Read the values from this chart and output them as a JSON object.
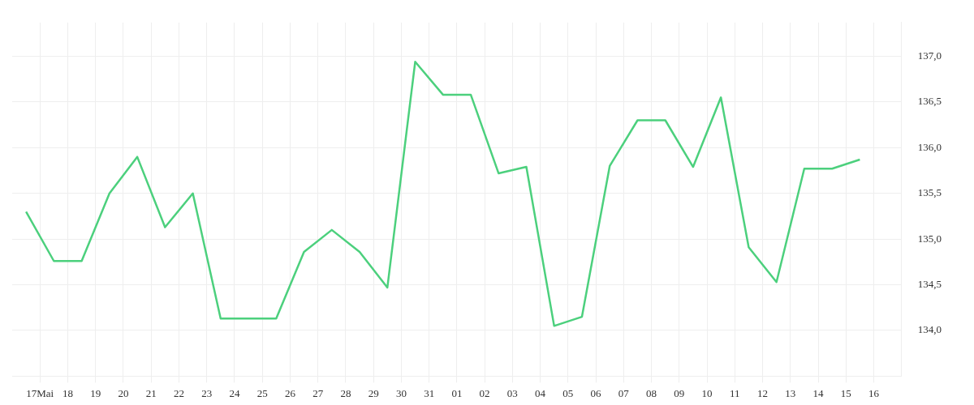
{
  "chart_data": {
    "type": "line",
    "x": [
      "--05-16T12:00",
      "--05-17T12:00",
      "--05-18T12:00",
      "--05-19T12:00",
      "--05-20T12:00",
      "--05-21T12:00",
      "--05-22T12:00",
      "--05-23T12:00",
      "--05-24T12:00",
      "--05-25T12:00",
      "--05-26T12:00",
      "--05-27T12:00",
      "--05-28T12:00",
      "--05-29T12:00",
      "--05-30T12:00",
      "--05-31T12:00",
      "--06-01T12:00",
      "--06-02T12:00",
      "--06-03T12:00",
      "--06-04T12:00",
      "--06-05T12:00",
      "--06-06T12:00",
      "--06-07T12:00",
      "--06-08T12:00",
      "--06-09T12:00",
      "--06-10T12:00",
      "--06-11T12:00",
      "--06-12T12:00",
      "--06-13T12:00",
      "--06-14T12:00",
      "--06-15T12:00"
    ],
    "series": [
      {
        "color": "#4cd07d",
        "values": [
          135.3,
          134.76,
          134.76,
          135.5,
          135.9,
          135.13,
          135.5,
          134.13,
          134.13,
          134.13,
          134.86,
          135.1,
          134.86,
          134.47,
          136.94,
          136.58,
          136.58,
          135.72,
          135.79,
          134.05,
          134.15,
          135.8,
          136.3,
          136.3,
          135.79,
          136.55,
          134.91,
          134.53,
          135.77,
          135.77,
          135.87
        ]
      }
    ],
    "xlim": [
      "--05-16",
      "--06-17"
    ],
    "xticks": [
      {
        "value": "--05-17",
        "label": "17Mai"
      },
      {
        "value": "--05-18",
        "label": "18"
      },
      {
        "value": "--05-19",
        "label": "19"
      },
      {
        "value": "--05-20",
        "label": "20"
      },
      {
        "value": "--05-21",
        "label": "21"
      },
      {
        "value": "--05-22",
        "label": "22"
      },
      {
        "value": "--05-23",
        "label": "23"
      },
      {
        "value": "--05-24",
        "label": "24"
      },
      {
        "value": "--05-25",
        "label": "25"
      },
      {
        "value": "--05-26",
        "label": "26"
      },
      {
        "value": "--05-27",
        "label": "27"
      },
      {
        "value": "--05-28",
        "label": "28"
      },
      {
        "value": "--05-29",
        "label": "29"
      },
      {
        "value": "--05-30",
        "label": "30"
      },
      {
        "value": "--05-31",
        "label": "31"
      },
      {
        "value": "--06-01",
        "label": "01"
      },
      {
        "value": "--06-02",
        "label": "02"
      },
      {
        "value": "--06-03",
        "label": "03"
      },
      {
        "value": "--06-04",
        "label": "04"
      },
      {
        "value": "--06-05",
        "label": "05"
      },
      {
        "value": "--06-06",
        "label": "06"
      },
      {
        "value": "--06-07",
        "label": "07"
      },
      {
        "value": "--06-08",
        "label": "08"
      },
      {
        "value": "--06-09",
        "label": "09"
      },
      {
        "value": "--06-10",
        "label": "10"
      },
      {
        "value": "--06-11",
        "label": "11"
      },
      {
        "value": "--06-12",
        "label": "12"
      },
      {
        "value": "--06-13",
        "label": "13"
      },
      {
        "value": "--06-14",
        "label": "14"
      },
      {
        "value": "--06-15",
        "label": "15"
      },
      {
        "value": "--06-16",
        "label": "16"
      }
    ],
    "ylim": [
      133.5,
      137.37
    ],
    "yticks": [
      {
        "value": 134,
        "label": "134,0"
      },
      {
        "value": 134.5,
        "label": "134,5"
      },
      {
        "value": 135,
        "label": "135,0"
      },
      {
        "value": 135.5,
        "label": "135,5"
      },
      {
        "value": 136,
        "label": "136,0"
      },
      {
        "value": 136.5,
        "label": "136,5"
      },
      {
        "value": 137,
        "label": "137,0"
      }
    ],
    "grid": true,
    "marker": "none",
    "line_style": "solid"
  }
}
